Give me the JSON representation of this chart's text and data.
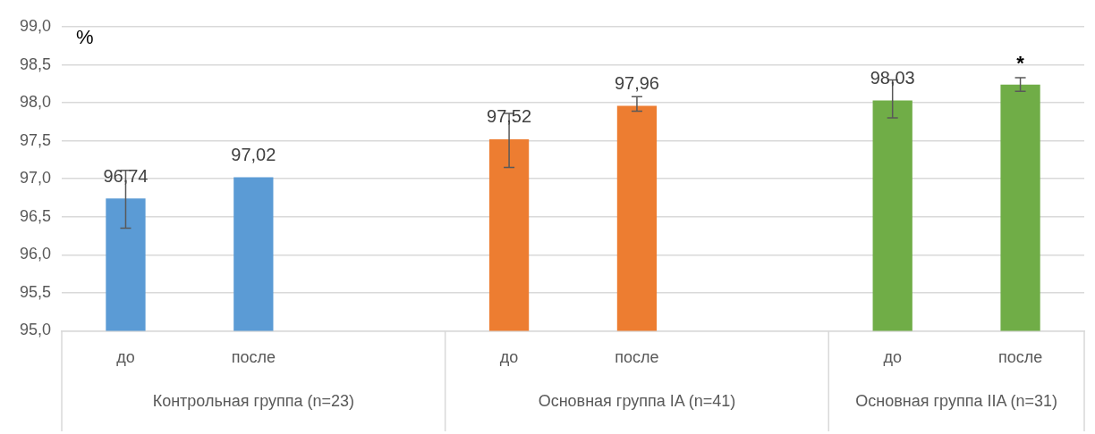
{
  "chart_data": {
    "type": "bar",
    "ylabel": "%",
    "categories": [
      "до",
      "после",
      null,
      "до",
      "после",
      null,
      "до",
      "после"
    ],
    "values": [
      96.74,
      97.02,
      null,
      97.52,
      97.96,
      null,
      98.03,
      98.24
    ],
    "colors": [
      "#5b9bd5",
      "#5b9bd5",
      null,
      "#ed7d31",
      "#ed7d31",
      null,
      "#70ad47",
      "#70ad47"
    ],
    "errors": [
      [
        96.35,
        97.11
      ],
      null,
      null,
      [
        97.15,
        97.86
      ],
      [
        97.89,
        98.08
      ],
      null,
      [
        97.8,
        98.3
      ],
      0.09
    ],
    "value_labels": [
      "96,74",
      "97,02",
      null,
      "97,52",
      "97,96",
      null,
      "98,03",
      null
    ],
    "ylim": [
      95,
      99
    ],
    "yticks": [
      {
        "value": 95,
        "label": "95,0"
      },
      {
        "value": 95.5,
        "label": "95,5"
      },
      {
        "value": 96,
        "label": "96,0"
      },
      {
        "value": 96.5,
        "label": "96,5"
      },
      {
        "value": 97,
        "label": "97,0"
      },
      {
        "value": 97.5,
        "label": "97,5"
      },
      {
        "value": 98,
        "label": "98,0"
      },
      {
        "value": 98.5,
        "label": "98,5"
      },
      {
        "value": 99,
        "label": "99,0"
      }
    ],
    "grid": "y",
    "legend": false,
    "annotations": [
      "Контрольная группа (n=23)",
      "Основная группа IA (n=41)",
      "Основная группа IIA (n=31)",
      "*"
    ]
  }
}
